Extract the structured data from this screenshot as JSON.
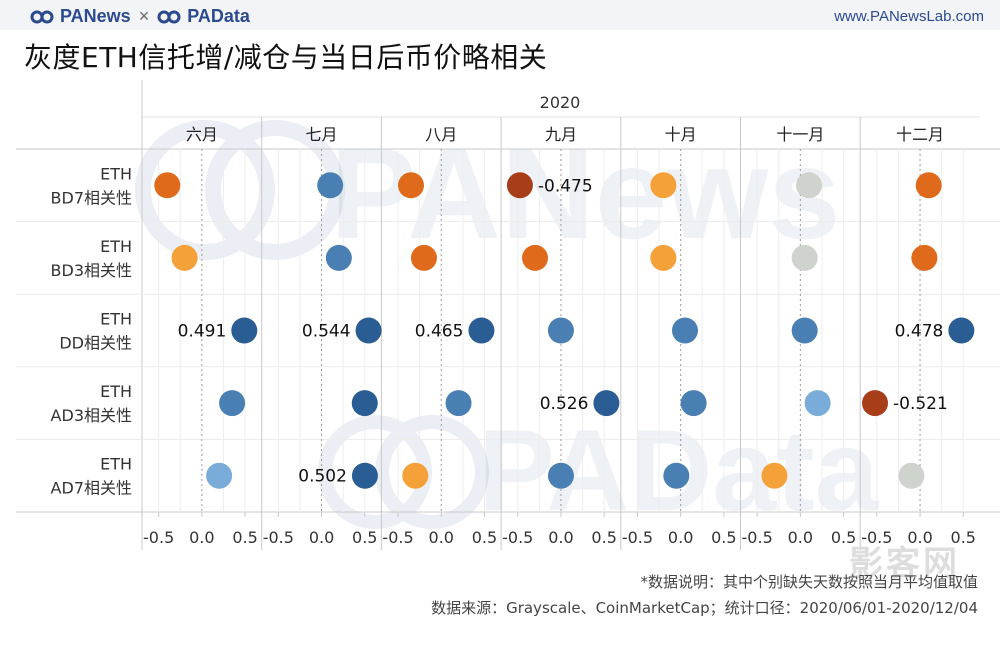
{
  "header": {
    "brand_left": "PANews",
    "brand_sep": "×",
    "brand_right": "PAData",
    "site": "www.PANewsLab.com"
  },
  "title": "灰度ETH信托增/减仓与当日后币价略相关",
  "watermarks": {
    "top": "PANews",
    "bottom": "PAData",
    "corner": "影客网"
  },
  "footer": {
    "note": "*数据说明：其中个别缺失天数按照当月平均值取值",
    "source": "数据来源：Grayscale、CoinMarketCap；统计口径：2020/06/01-2020/12/04"
  },
  "colors": {
    "strong_neg": "#a83d1a",
    "neg": "#e06a1c",
    "weak_neg": "#f4a13a",
    "neutral": "#cfd3cd",
    "weak_pos": "#79acd8",
    "pos": "#4a7fb3",
    "strong_pos": "#2a5d93"
  },
  "chart_data": {
    "type": "scatter",
    "year": "2020",
    "months": [
      "六月",
      "七月",
      "八月",
      "九月",
      "十月",
      "十一月",
      "十二月"
    ],
    "xlim": [
      -0.6,
      0.6
    ],
    "xticks": [
      "-0.5",
      "0.0",
      "0.5"
    ],
    "rows": [
      {
        "line1": "ETH",
        "line2": "BD7相关性",
        "values": [
          -0.4,
          0.1,
          -0.35,
          -0.475,
          -0.2,
          0.1,
          0.1
        ],
        "labels": [
          "",
          "",
          "",
          "-0.475",
          "",
          "",
          ""
        ],
        "colors": [
          "neg",
          "pos",
          "neg",
          "strong_neg",
          "weak_neg",
          "neutral",
          "neg"
        ]
      },
      {
        "line1": "ETH",
        "line2": "BD3相关性",
        "values": [
          -0.2,
          0.2,
          -0.2,
          -0.3,
          -0.2,
          0.05,
          0.05
        ],
        "labels": [
          "",
          "",
          "",
          "",
          "",
          "",
          ""
        ],
        "colors": [
          "weak_neg",
          "pos",
          "neg",
          "neg",
          "weak_neg",
          "neutral",
          "neg"
        ]
      },
      {
        "line1": "ETH",
        "line2": "DD相关性",
        "values": [
          0.491,
          0.544,
          0.465,
          0.0,
          0.05,
          0.05,
          0.478
        ],
        "labels": [
          "0.491",
          "0.544",
          "0.465",
          "",
          "",
          "",
          "0.478"
        ],
        "colors": [
          "strong_pos",
          "strong_pos",
          "strong_pos",
          "pos",
          "pos",
          "pos",
          "strong_pos"
        ]
      },
      {
        "line1": "ETH",
        "line2": "AD3相关性",
        "values": [
          0.35,
          0.5,
          0.2,
          0.526,
          0.15,
          0.2,
          -0.521
        ],
        "labels": [
          "",
          "",
          "",
          "0.526",
          "",
          "",
          "-0.521"
        ],
        "colors": [
          "pos",
          "strong_pos",
          "pos",
          "strong_pos",
          "pos",
          "weak_pos",
          "strong_neg"
        ]
      },
      {
        "line1": "ETH",
        "line2": "AD7相关性",
        "values": [
          0.2,
          0.502,
          -0.3,
          0.0,
          -0.05,
          -0.3,
          -0.1
        ],
        "labels": [
          "",
          "0.502",
          "",
          "",
          "",
          "",
          ""
        ],
        "colors": [
          "weak_pos",
          "strong_pos",
          "weak_neg",
          "pos",
          "pos",
          "weak_neg",
          "neutral"
        ]
      }
    ]
  }
}
